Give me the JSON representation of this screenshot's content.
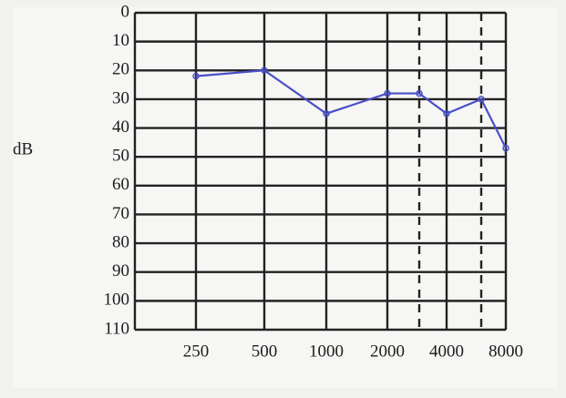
{
  "chart_data": {
    "type": "line",
    "y_label": "dB",
    "categories": [
      "250",
      "500",
      "1000",
      "2000",
      null,
      "4000",
      null,
      "8000"
    ],
    "values": [
      22,
      20,
      35,
      28,
      28,
      35,
      30,
      47
    ],
    "color": "#4a4fc8",
    "ylim": [
      0,
      110
    ],
    "yticks": [
      0,
      10,
      20,
      30,
      40,
      50,
      60,
      70,
      80,
      90,
      100,
      110
    ],
    "y_inverted": true,
    "grid": true
  }
}
